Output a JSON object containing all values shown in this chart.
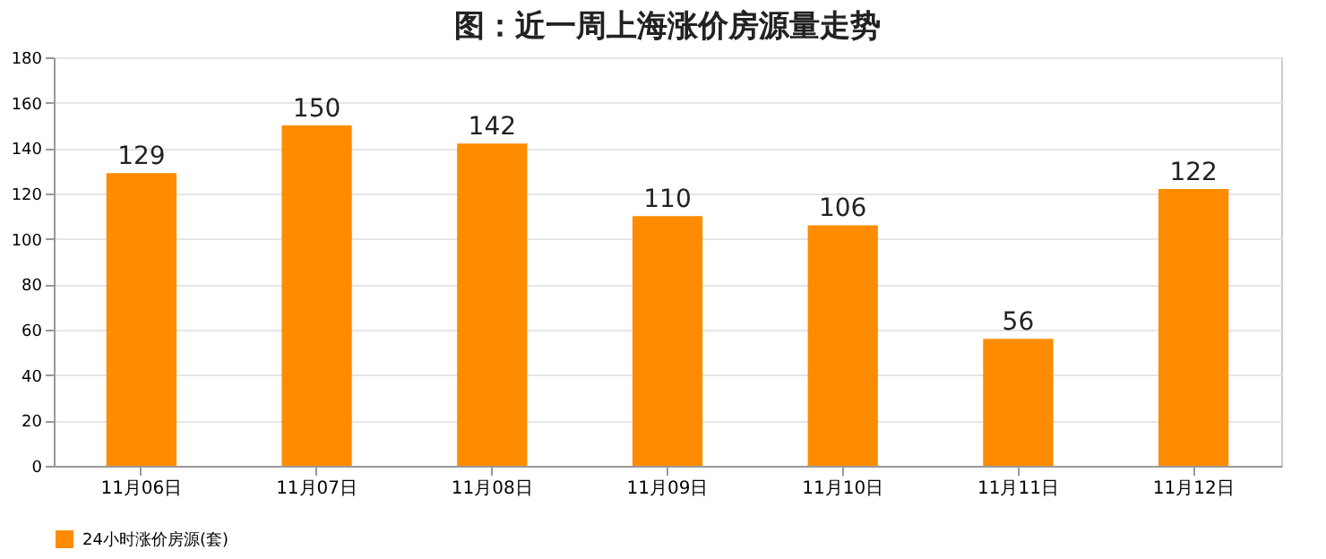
{
  "chart_data": {
    "type": "bar",
    "title": "图：近一周上海涨价房源量走势",
    "categories": [
      "11月06日",
      "11月07日",
      "11月08日",
      "11月09日",
      "11月10日",
      "11月11日",
      "11月12日"
    ],
    "series": [
      {
        "name": "24小时涨价房源(套)",
        "color": "#ff8c00",
        "values": [
          129,
          150,
          142,
          110,
          106,
          56,
          122
        ]
      }
    ],
    "ylim": [
      0,
      180
    ],
    "yticks": [
      0,
      20,
      40,
      60,
      80,
      100,
      120,
      140,
      160,
      180
    ],
    "grid": "y",
    "legend": "bottom",
    "data_labels": true
  }
}
